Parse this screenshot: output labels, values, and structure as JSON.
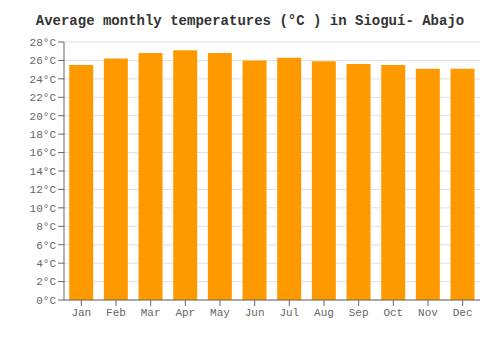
{
  "chart_data": {
    "type": "bar",
    "title": "Average monthly temperatures (°C ) in Sioguí- Abajo",
    "categories": [
      "Jan",
      "Feb",
      "Mar",
      "Apr",
      "May",
      "Jun",
      "Jul",
      "Aug",
      "Sep",
      "Oct",
      "Nov",
      "Dec"
    ],
    "values": [
      25.5,
      26.2,
      26.8,
      27.1,
      26.8,
      26.0,
      26.3,
      25.9,
      25.6,
      25.5,
      25.1,
      25.1
    ],
    "color": "#FF9900",
    "ylim": [
      0,
      28
    ],
    "yticks": [
      {
        "value": 0,
        "label": "0°C"
      },
      {
        "value": 2,
        "label": "2°C"
      },
      {
        "value": 4,
        "label": "4°C"
      },
      {
        "value": 6,
        "label": "6°C"
      },
      {
        "value": 8,
        "label": "8°C"
      },
      {
        "value": 10,
        "label": "10°C"
      },
      {
        "value": 12,
        "label": "12°C"
      },
      {
        "value": 14,
        "label": "14°C"
      },
      {
        "value": 16,
        "label": "16°C"
      },
      {
        "value": 18,
        "label": "18°C"
      },
      {
        "value": 20,
        "label": "20°C"
      },
      {
        "value": 22,
        "label": "22°C"
      },
      {
        "value": 24,
        "label": "24°C"
      },
      {
        "value": 26,
        "label": "26°C"
      },
      {
        "value": 28,
        "label": "28°C"
      }
    ],
    "grid": true
  }
}
